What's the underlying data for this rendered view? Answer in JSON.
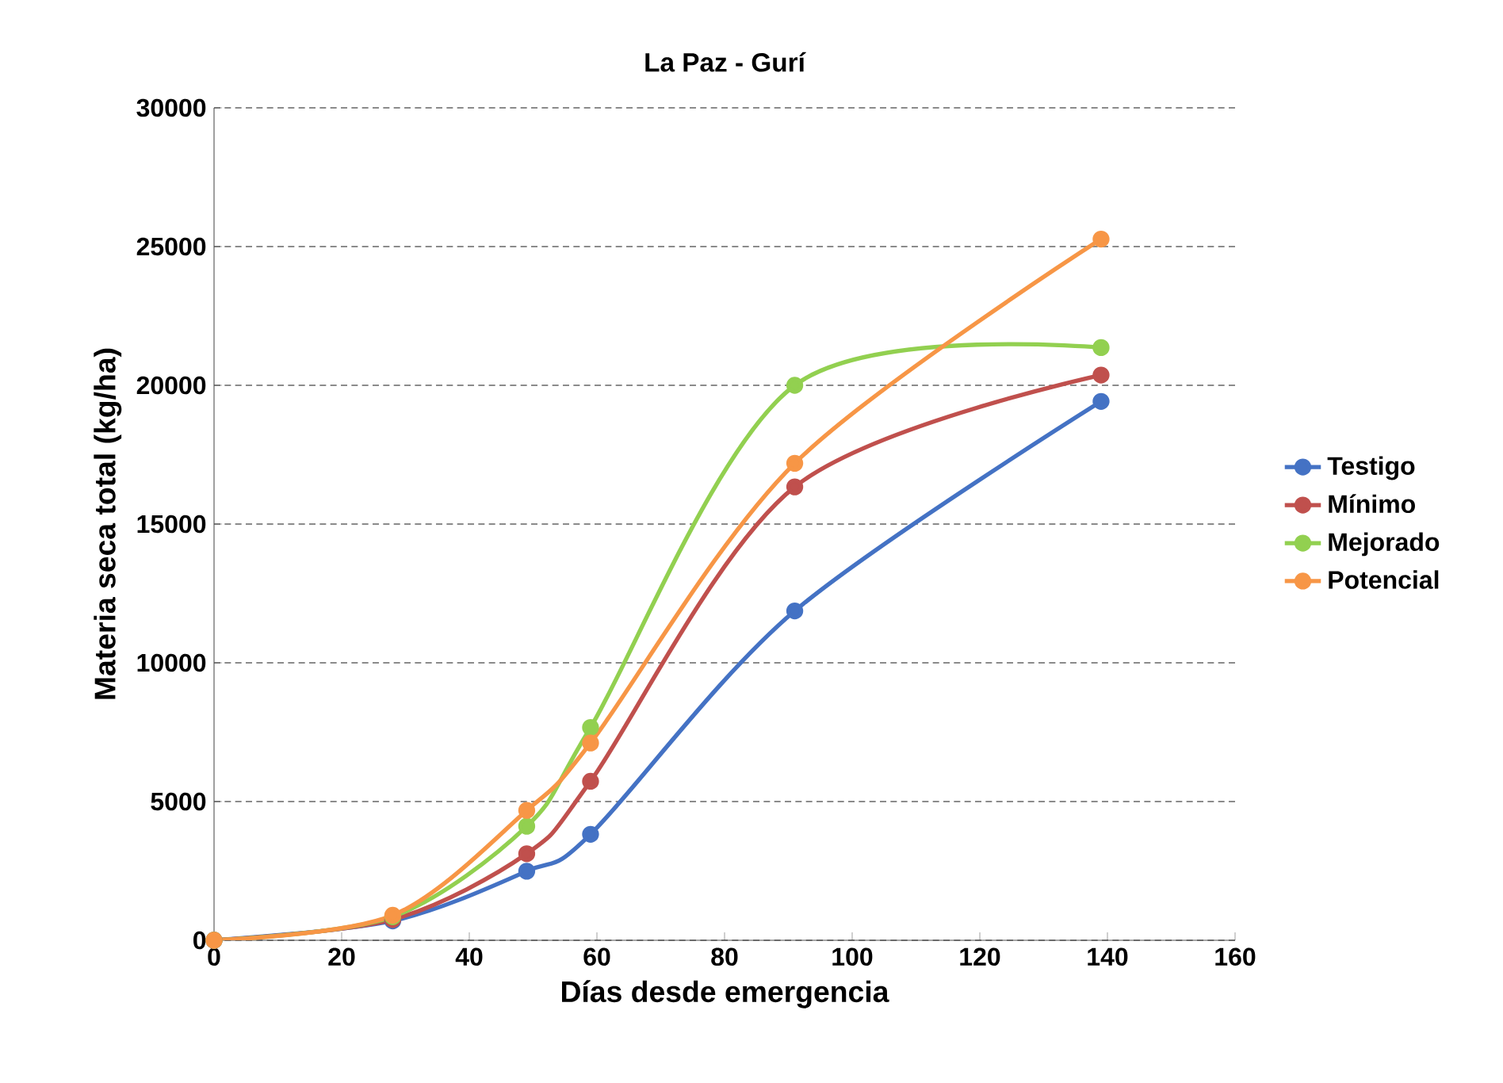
{
  "chart_data": {
    "type": "line",
    "title": "La Paz - Gurí",
    "xlabel": "Días desde emergencia",
    "ylabel": "Materia seca total (kg/ha)",
    "x": [
      0,
      28,
      49,
      59,
      91,
      139
    ],
    "series": [
      {
        "name": "Testigo",
        "color": "#4472c4",
        "values": [
          0,
          700,
          2490,
          3820,
          11870,
          19420
        ]
      },
      {
        "name": "Mínimo",
        "color": "#c0504d",
        "values": [
          0,
          750,
          3120,
          5730,
          16340,
          20370
        ]
      },
      {
        "name": "Mejorado",
        "color": "#92d050",
        "values": [
          0,
          850,
          4110,
          7670,
          20000,
          21360
        ]
      },
      {
        "name": "Potencial",
        "color": "#f79646",
        "values": [
          0,
          900,
          4680,
          7110,
          17190,
          25270
        ]
      }
    ],
    "xlim": [
      0,
      160
    ],
    "xticks": [
      0,
      20,
      40,
      60,
      80,
      100,
      120,
      140,
      160
    ],
    "ylim": [
      0,
      30000
    ],
    "yticks": [
      0,
      5000,
      10000,
      15000,
      20000,
      25000,
      30000
    ],
    "grid": "y",
    "legend": "right",
    "marker": "circle",
    "line_style": "solid"
  }
}
